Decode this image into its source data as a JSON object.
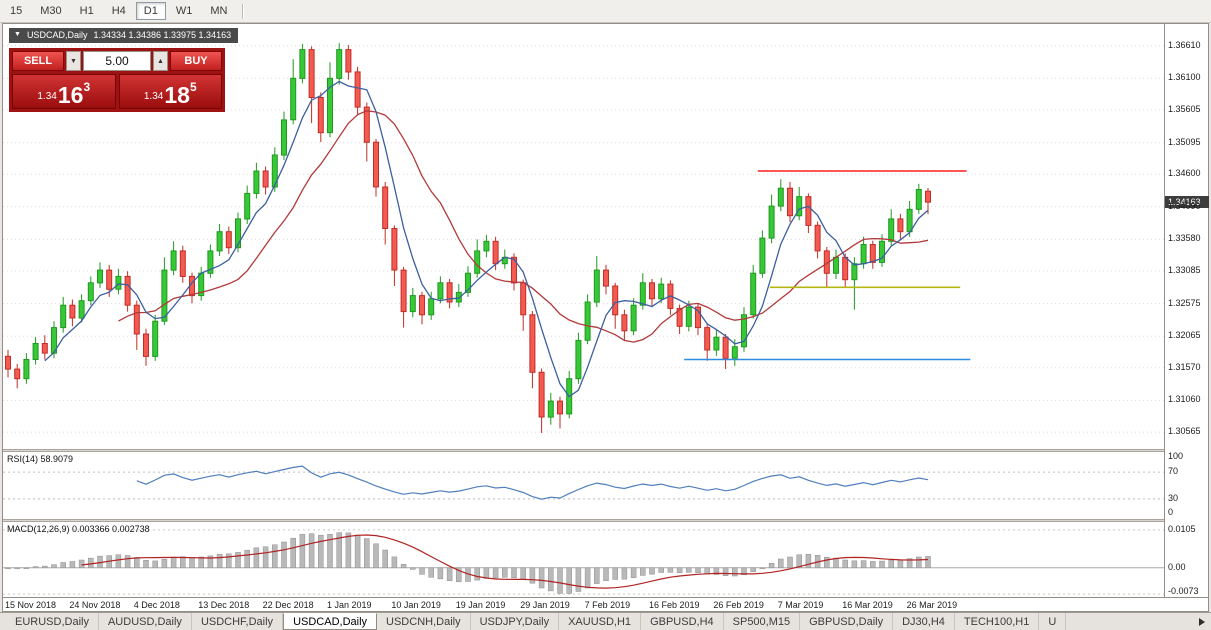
{
  "toolbar": {
    "timeframes": [
      "15",
      "M30",
      "H1",
      "H4",
      "D1",
      "W1",
      "MN"
    ],
    "active_timeframe": "D1"
  },
  "chart": {
    "symbol_label": "USDCAD,Daily",
    "ohlc_readout": "1.34334 1.34386 1.33975 1.34163",
    "collapse_glyph": "▼",
    "current_price_badge": "1.34163",
    "trade_panel": {
      "sell_label": "SELL",
      "buy_label": "BUY",
      "volume": "5.00",
      "decrease_glyph": "▼",
      "increase_glyph": "▲",
      "sell_price": {
        "prefix": "1.34",
        "main": "16",
        "fraction": "3"
      },
      "buy_price": {
        "prefix": "1.34",
        "main": "18",
        "fraction": "5"
      }
    }
  },
  "chart_data": {
    "type": "candlestick",
    "title": "USDCAD,Daily",
    "ylim": [
      1.303,
      1.3695
    ],
    "last_price": 1.34163,
    "y_ticks": [
      "1.36610",
      "1.36100",
      "1.35605",
      "1.35095",
      "1.34600",
      "1.34090",
      "1.33580",
      "1.33085",
      "1.32575",
      "1.32065",
      "1.31570",
      "1.31060",
      "1.30565"
    ],
    "x_labels": [
      {
        "index": 0,
        "label": "15 Nov 2018"
      },
      {
        "index": 7,
        "label": "24 Nov 2018"
      },
      {
        "index": 14,
        "label": "4 Dec 2018"
      },
      {
        "index": 21,
        "label": "13 Dec 2018"
      },
      {
        "index": 28,
        "label": "22 Dec 2018"
      },
      {
        "index": 35,
        "label": "1 Jan 2019"
      },
      {
        "index": 42,
        "label": "10 Jan 2019"
      },
      {
        "index": 49,
        "label": "19 Jan 2019"
      },
      {
        "index": 56,
        "label": "29 Jan 2019"
      },
      {
        "index": 63,
        "label": "7 Feb 2019"
      },
      {
        "index": 70,
        "label": "16 Feb 2019"
      },
      {
        "index": 77,
        "label": "26 Feb 2019"
      },
      {
        "index": 84,
        "label": "7 Mar 2019"
      },
      {
        "index": 91,
        "label": "16 Mar 2019"
      },
      {
        "index": 98,
        "label": "26 Mar 2019"
      }
    ],
    "ohlc": [
      [
        1.3175,
        1.3185,
        1.3142,
        1.3155
      ],
      [
        1.3155,
        1.3163,
        1.3125,
        1.314
      ],
      [
        1.314,
        1.318,
        1.3132,
        1.317
      ],
      [
        1.317,
        1.3205,
        1.3162,
        1.3195
      ],
      [
        1.3195,
        1.3208,
        1.317,
        1.318
      ],
      [
        1.318,
        1.323,
        1.3172,
        1.322
      ],
      [
        1.322,
        1.3268,
        1.3212,
        1.3255
      ],
      [
        1.3255,
        1.3264,
        1.3222,
        1.3235
      ],
      [
        1.3235,
        1.3272,
        1.3228,
        1.3262
      ],
      [
        1.3262,
        1.33,
        1.3255,
        1.329
      ],
      [
        1.329,
        1.3322,
        1.3282,
        1.331
      ],
      [
        1.331,
        1.3318,
        1.3268,
        1.328
      ],
      [
        1.328,
        1.3312,
        1.3272,
        1.33
      ],
      [
        1.33,
        1.3308,
        1.3245,
        1.3255
      ],
      [
        1.3255,
        1.3262,
        1.3185,
        1.321
      ],
      [
        1.321,
        1.3218,
        1.316,
        1.3175
      ],
      [
        1.3175,
        1.324,
        1.3168,
        1.323
      ],
      [
        1.323,
        1.333,
        1.3224,
        1.331
      ],
      [
        1.331,
        1.3355,
        1.3302,
        1.334
      ],
      [
        1.334,
        1.3348,
        1.329,
        1.33
      ],
      [
        1.33,
        1.3306,
        1.3258,
        1.327
      ],
      [
        1.327,
        1.3315,
        1.3262,
        1.3305
      ],
      [
        1.3305,
        1.335,
        1.3298,
        1.334
      ],
      [
        1.334,
        1.3382,
        1.3332,
        1.337
      ],
      [
        1.337,
        1.3378,
        1.3335,
        1.3345
      ],
      [
        1.3345,
        1.34,
        1.3338,
        1.339
      ],
      [
        1.339,
        1.3442,
        1.3382,
        1.343
      ],
      [
        1.343,
        1.3478,
        1.3422,
        1.3465
      ],
      [
        1.3465,
        1.3472,
        1.3428,
        1.344
      ],
      [
        1.344,
        1.3502,
        1.3432,
        1.349
      ],
      [
        1.349,
        1.3558,
        1.3482,
        1.3545
      ],
      [
        1.3545,
        1.364,
        1.3538,
        1.361
      ],
      [
        1.361,
        1.3664,
        1.3602,
        1.3655
      ],
      [
        1.3655,
        1.366,
        1.354,
        1.358
      ],
      [
        1.358,
        1.3588,
        1.351,
        1.3525
      ],
      [
        1.3525,
        1.3635,
        1.3518,
        1.361
      ],
      [
        1.361,
        1.3665,
        1.36,
        1.3655
      ],
      [
        1.3655,
        1.3662,
        1.3608,
        1.362
      ],
      [
        1.362,
        1.3628,
        1.3552,
        1.3565
      ],
      [
        1.3565,
        1.3572,
        1.348,
        1.351
      ],
      [
        1.351,
        1.3515,
        1.3425,
        1.344
      ],
      [
        1.344,
        1.3448,
        1.335,
        1.3375
      ],
      [
        1.3375,
        1.338,
        1.3285,
        1.331
      ],
      [
        1.331,
        1.3315,
        1.322,
        1.3245
      ],
      [
        1.3245,
        1.3282,
        1.3236,
        1.327
      ],
      [
        1.327,
        1.3276,
        1.3225,
        1.324
      ],
      [
        1.324,
        1.3276,
        1.3232,
        1.3265
      ],
      [
        1.3265,
        1.33,
        1.3258,
        1.329
      ],
      [
        1.329,
        1.3296,
        1.325,
        1.326
      ],
      [
        1.326,
        1.3288,
        1.3252,
        1.3275
      ],
      [
        1.3275,
        1.3316,
        1.3268,
        1.3305
      ],
      [
        1.3305,
        1.3358,
        1.3298,
        1.334
      ],
      [
        1.334,
        1.3365,
        1.333,
        1.3355
      ],
      [
        1.3355,
        1.3362,
        1.331,
        1.332
      ],
      [
        1.332,
        1.3342,
        1.3312,
        1.333
      ],
      [
        1.333,
        1.3336,
        1.3278,
        1.329
      ],
      [
        1.329,
        1.3295,
        1.3215,
        1.324
      ],
      [
        1.324,
        1.3246,
        1.3125,
        1.315
      ],
      [
        1.315,
        1.3156,
        1.3055,
        1.308
      ],
      [
        1.308,
        1.3118,
        1.3068,
        1.3105
      ],
      [
        1.3105,
        1.3112,
        1.3062,
        1.3085
      ],
      [
        1.3085,
        1.3152,
        1.3078,
        1.314
      ],
      [
        1.314,
        1.3212,
        1.3132,
        1.32
      ],
      [
        1.32,
        1.3272,
        1.3194,
        1.326
      ],
      [
        1.326,
        1.3332,
        1.3252,
        1.331
      ],
      [
        1.331,
        1.3318,
        1.3272,
        1.3285
      ],
      [
        1.3285,
        1.329,
        1.3218,
        1.324
      ],
      [
        1.324,
        1.3248,
        1.32,
        1.3215
      ],
      [
        1.3215,
        1.3266,
        1.3208,
        1.3255
      ],
      [
        1.3255,
        1.3305,
        1.3248,
        1.329
      ],
      [
        1.329,
        1.3296,
        1.3252,
        1.3265
      ],
      [
        1.3265,
        1.3298,
        1.3258,
        1.3288
      ],
      [
        1.3288,
        1.3294,
        1.324,
        1.325
      ],
      [
        1.325,
        1.3256,
        1.321,
        1.3222
      ],
      [
        1.3222,
        1.3262,
        1.3214,
        1.3252
      ],
      [
        1.3252,
        1.3258,
        1.3208,
        1.322
      ],
      [
        1.322,
        1.3226,
        1.3168,
        1.3185
      ],
      [
        1.3185,
        1.3216,
        1.3176,
        1.3205
      ],
      [
        1.3205,
        1.321,
        1.3155,
        1.3172
      ],
      [
        1.3172,
        1.3202,
        1.316,
        1.319
      ],
      [
        1.319,
        1.3252,
        1.3182,
        1.324
      ],
      [
        1.324,
        1.3318,
        1.3234,
        1.3305
      ],
      [
        1.3305,
        1.3372,
        1.3298,
        1.336
      ],
      [
        1.336,
        1.3428,
        1.3352,
        1.341
      ],
      [
        1.341,
        1.3452,
        1.3402,
        1.3438
      ],
      [
        1.3438,
        1.3448,
        1.3385,
        1.3395
      ],
      [
        1.3395,
        1.344,
        1.3388,
        1.3425
      ],
      [
        1.3425,
        1.343,
        1.3368,
        1.338
      ],
      [
        1.338,
        1.3386,
        1.3328,
        1.334
      ],
      [
        1.334,
        1.3346,
        1.3282,
        1.3305
      ],
      [
        1.3305,
        1.3342,
        1.3296,
        1.333
      ],
      [
        1.333,
        1.3336,
        1.3284,
        1.3295
      ],
      [
        1.3295,
        1.333,
        1.3248,
        1.332
      ],
      [
        1.332,
        1.3362,
        1.3312,
        1.335
      ],
      [
        1.335,
        1.3356,
        1.3312,
        1.3322
      ],
      [
        1.3322,
        1.3366,
        1.3315,
        1.3355
      ],
      [
        1.3355,
        1.3405,
        1.3348,
        1.339
      ],
      [
        1.339,
        1.3398,
        1.3358,
        1.337
      ],
      [
        1.337,
        1.3418,
        1.3362,
        1.3405
      ],
      [
        1.3405,
        1.3445,
        1.3398,
        1.3436
      ],
      [
        1.34334,
        1.34386,
        1.33975,
        1.34163
      ]
    ],
    "colors": {
      "up_fill": "#37c837",
      "up_stroke": "#1f9a1f",
      "down_fill": "#f25a52",
      "down_stroke": "#c22d25",
      "grid": "#dcdcdc"
    },
    "overlays": {
      "ma_fast": {
        "period": 5,
        "color": "#3c5fa0"
      },
      "ma_slow": {
        "period": 13,
        "color": "#b23939"
      },
      "hlines": [
        {
          "price": 1.3465,
          "from_index": 81.5,
          "to_index": 104.2,
          "color": "#ff1e1e"
        },
        {
          "price": 1.3283,
          "from_index": 82.8,
          "to_index": 103.5,
          "color": "#b4b612"
        },
        {
          "price": 1.317,
          "from_index": 73.5,
          "to_index": 104.6,
          "color": "#2f8be0"
        }
      ]
    },
    "indicators": [
      {
        "type": "rsi",
        "label": "RSI(14) 58.9079",
        "period": 14,
        "color": "#4f7fbe",
        "ticks": [
          {
            "value": 100,
            "label": "100"
          },
          {
            "value": 70,
            "label": "70",
            "line": true
          },
          {
            "value": 30,
            "label": "30",
            "line": true
          },
          {
            "value": 0,
            "label": "0"
          }
        ],
        "ylim": [
          0,
          100
        ]
      },
      {
        "type": "macd",
        "label": "MACD(12,26,9) 0.003366 0.002738",
        "params": [
          12,
          26,
          9
        ],
        "hist_color": "#b9b9b9",
        "hist_stroke": "#8f8f8f",
        "signal_color": "#b22222",
        "ticks": [
          {
            "value": 0.0105,
            "label": "0.0105"
          },
          {
            "value": 0,
            "label": "0.00",
            "zero": true
          },
          {
            "value": -0.0073,
            "label": "-0.0073"
          }
        ],
        "ylim": [
          -0.0081,
          0.0127
        ]
      }
    ]
  },
  "tabs": {
    "items": [
      "EURUSD,Daily",
      "AUDUSD,Daily",
      "USDCHF,Daily",
      "USDCAD,Daily",
      "USDCNH,Daily",
      "USDJPY,Daily",
      "XAUUSD,H1",
      "GBPUSD,H4",
      "SP500,M15",
      "GBPUSD,Daily",
      "DJ30,H4",
      "TECH100,H1",
      "U"
    ],
    "active": "USDCAD,Daily"
  }
}
